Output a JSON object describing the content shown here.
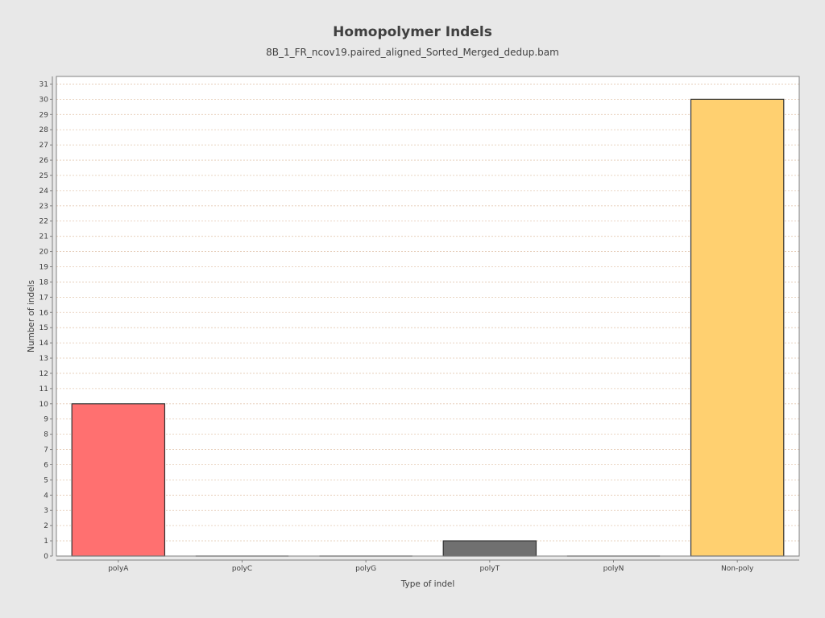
{
  "chart_data": {
    "type": "bar",
    "title": "Homopolymer Indels",
    "subtitle": "8B_1_FR_ncov19.paired_aligned_Sorted_Merged_dedup.bam",
    "xlabel": "Type of indel",
    "ylabel": "Number of indels",
    "categories": [
      "polyA",
      "polyC",
      "polyG",
      "polyT",
      "polyN",
      "Non-poly"
    ],
    "values": [
      10,
      0,
      0,
      1,
      0,
      30
    ],
    "colors": [
      "#ff7070",
      "#7070ff",
      "#70ff70",
      "#707070",
      "#ffff70",
      "#ffd070"
    ],
    "ylim": [
      0,
      31.5
    ],
    "yticks": [
      0,
      1,
      2,
      3,
      4,
      5,
      6,
      7,
      8,
      9,
      10,
      11,
      12,
      13,
      14,
      15,
      16,
      17,
      18,
      19,
      20,
      21,
      22,
      23,
      24,
      25,
      26,
      27,
      28,
      29,
      30,
      31
    ],
    "grid": true,
    "legend": "none"
  }
}
